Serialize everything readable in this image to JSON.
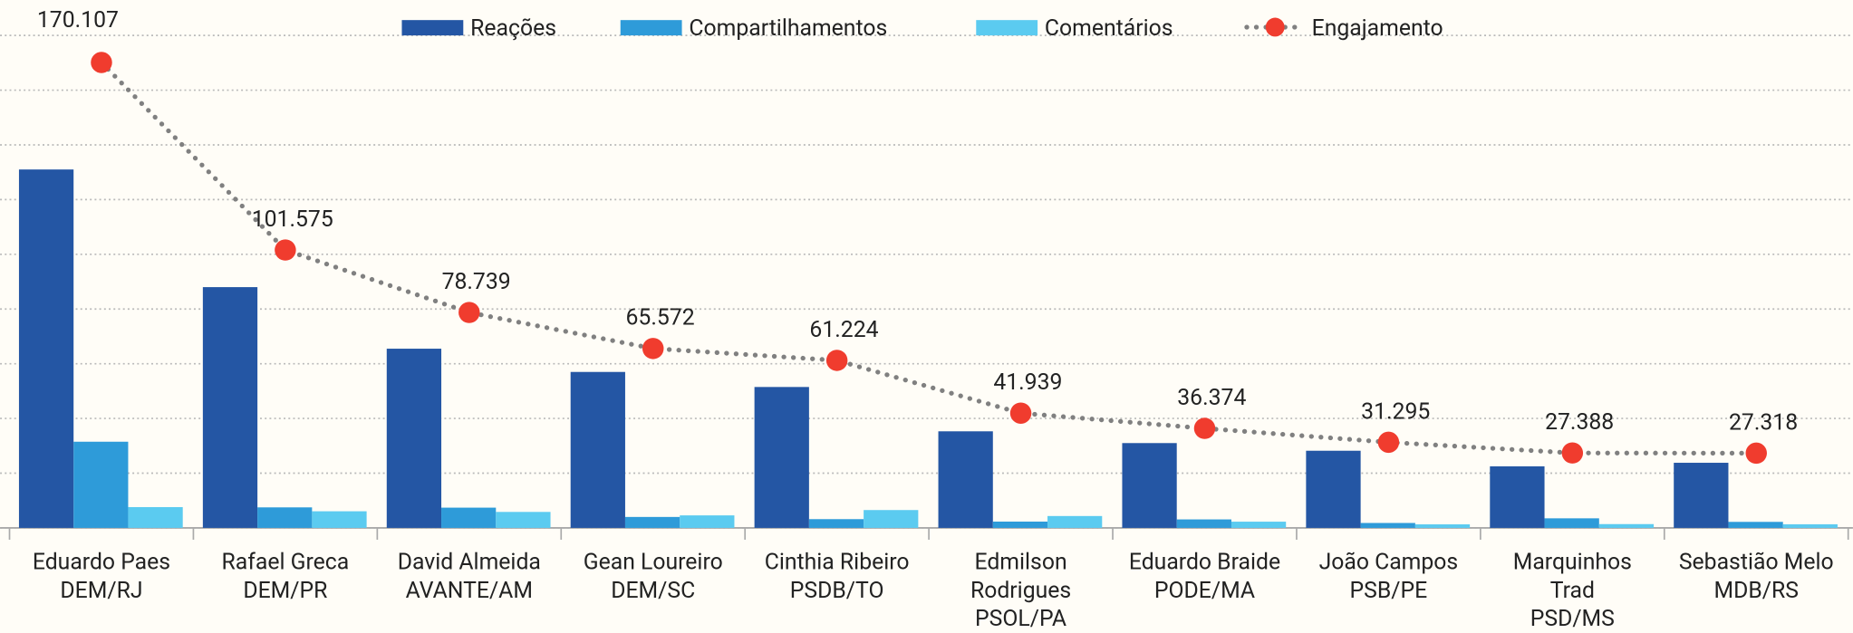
{
  "chart_data": {
    "type": "bar",
    "categories": [
      [
        "Eduardo Paes",
        "DEM/RJ"
      ],
      [
        "Rafael Greca",
        "DEM/PR"
      ],
      [
        "David Almeida",
        "AVANTE/AM"
      ],
      [
        "Gean Loureiro",
        "DEM/SC"
      ],
      [
        "Cinthia Ribeiro",
        "PSDB/TO"
      ],
      [
        "Edmilson",
        "Rodrigues",
        "PSOL/PA"
      ],
      [
        "Eduardo Braide",
        "PODE/MA"
      ],
      [
        "João Campos",
        "PSB/PE"
      ],
      [
        "Marquinhos",
        "Trad",
        "PSD/MS"
      ],
      [
        "Sebastião Melo",
        "MDB/RS"
      ]
    ],
    "series": [
      {
        "name": "Reações",
        "type": "bar",
        "color": "#2456a4",
        "values": [
          131000,
          88000,
          65500,
          57000,
          51500,
          35300,
          31000,
          28200,
          22500,
          23800
        ]
      },
      {
        "name": "Compartilhamentos",
        "type": "bar",
        "color": "#2e9bd9",
        "values": [
          31500,
          7500,
          7400,
          4000,
          3200,
          2300,
          3100,
          1800,
          3500,
          2200
        ]
      },
      {
        "name": "Comentários",
        "type": "bar",
        "color": "#5bcbf0",
        "values": [
          7600,
          6075,
          5839,
          4572,
          6524,
          4339,
          2274,
          1295,
          1388,
          1318
        ]
      },
      {
        "name": "Engajamento",
        "type": "line",
        "color": "#808080",
        "marker_color": "#f03c2e",
        "values": [
          170107,
          101575,
          78739,
          65572,
          61224,
          41939,
          36374,
          31295,
          27388,
          27318
        ],
        "value_labels": [
          "170.107",
          "101.575",
          "78.739",
          "65.572",
          "61.224",
          "41.939",
          "36.374",
          "31.295",
          "27.388",
          "27.318"
        ]
      }
    ],
    "ylim": [
      0,
      180000
    ],
    "yticks": [
      0,
      20000,
      40000,
      60000,
      80000,
      100000,
      120000,
      140000,
      160000,
      180000
    ],
    "grid": true,
    "legend": "top"
  }
}
